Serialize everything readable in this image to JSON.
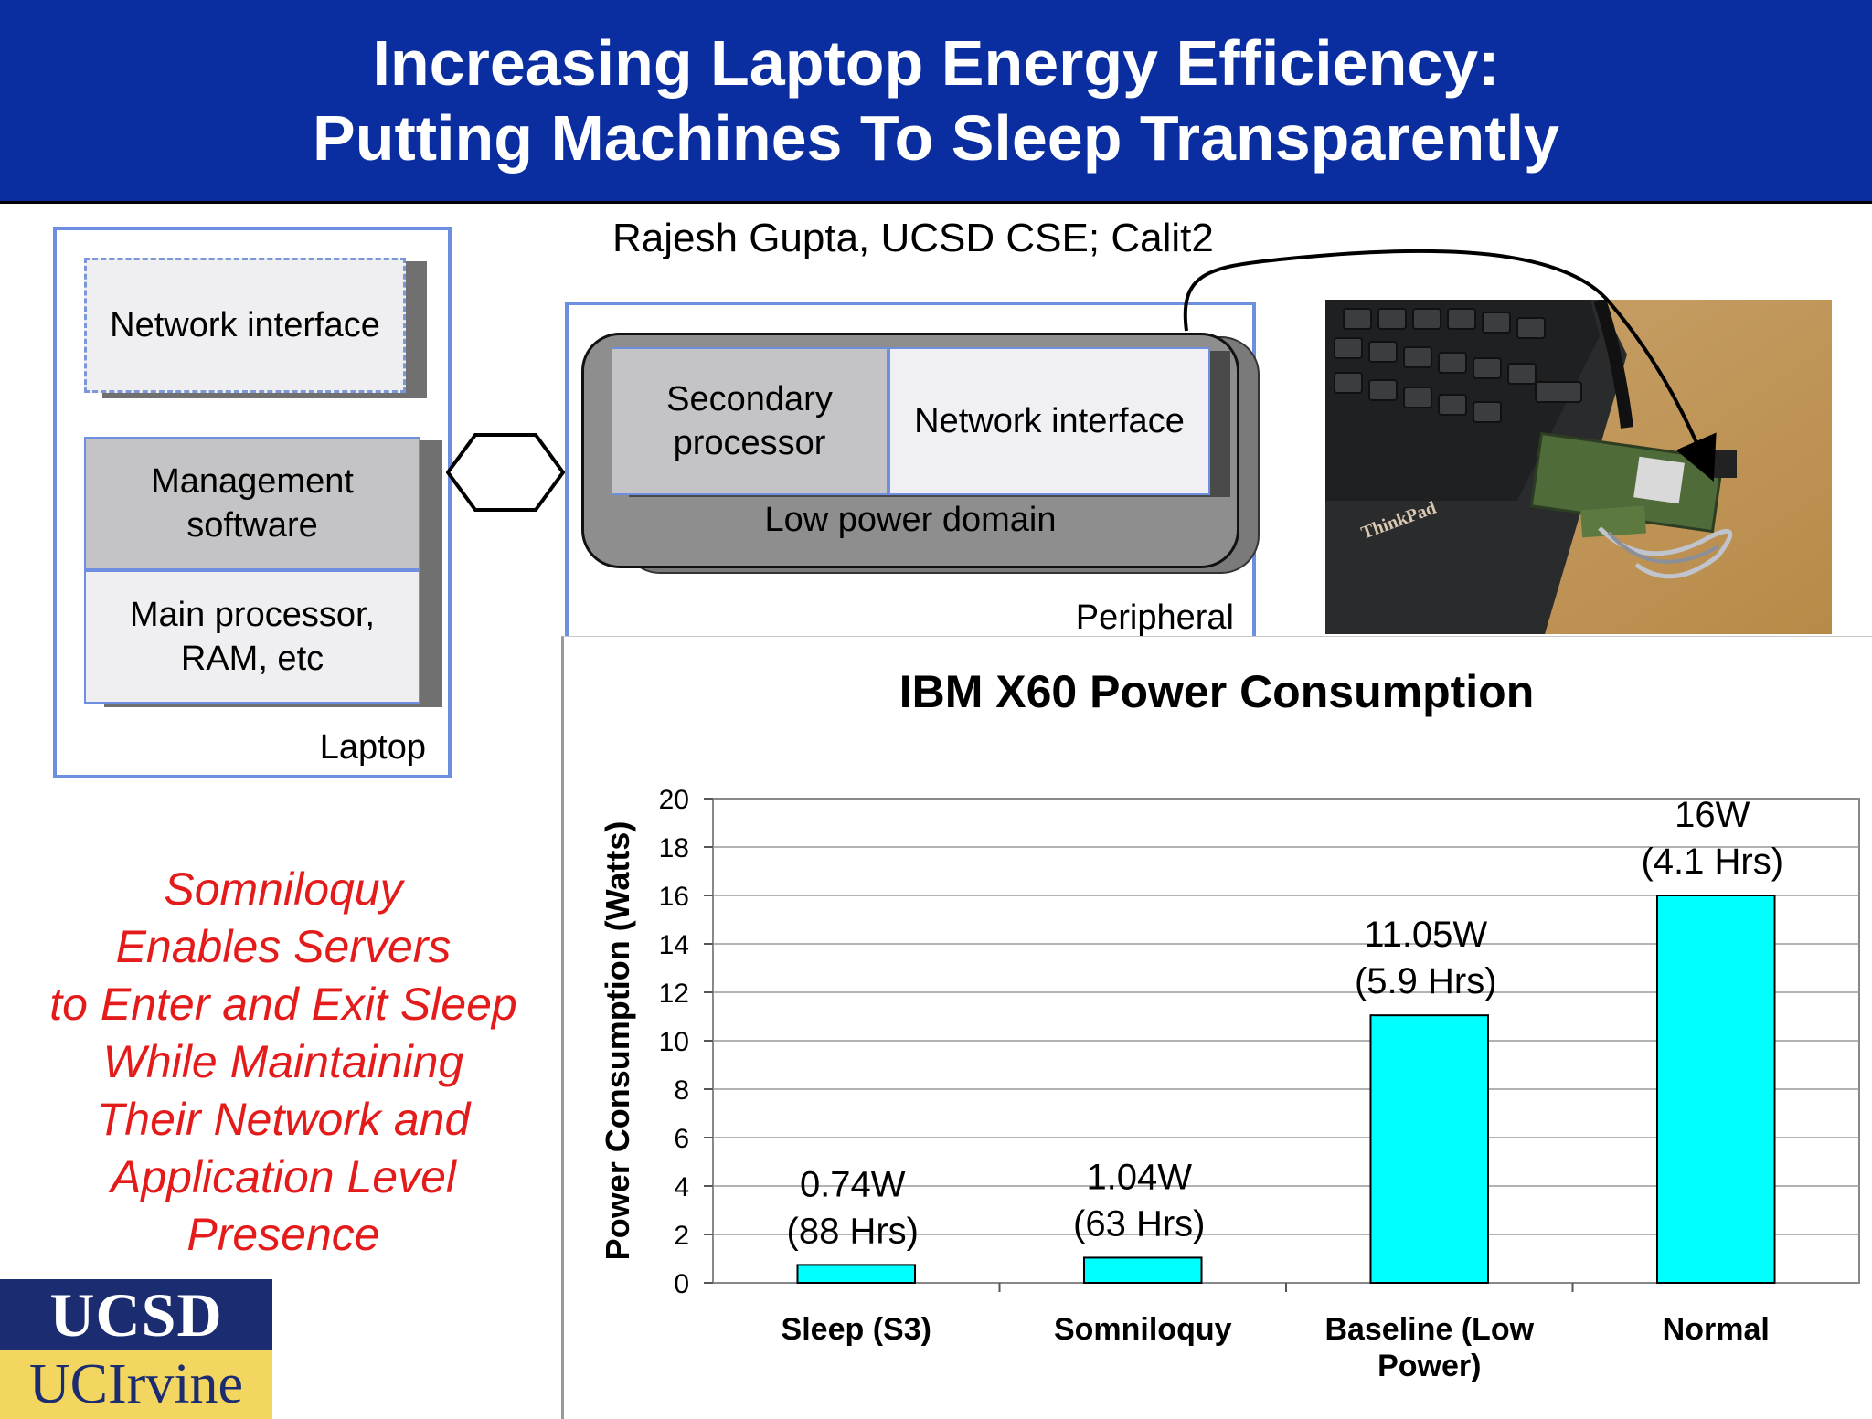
{
  "header": {
    "title_line1": "Increasing Laptop Energy Efficiency:",
    "title_line2": "Putting Machines To Sleep Transparently"
  },
  "author": "Rajesh Gupta, UCSD CSE; Calit2",
  "laptop": {
    "network_interface": "Network interface",
    "management_software": "Management software",
    "main_processor": "Main processor, RAM, etc",
    "label": "Laptop"
  },
  "peripheral": {
    "secondary_processor": "Secondary processor",
    "network_interface": "Network interface",
    "low_power_domain": "Low power domain",
    "label": "Peripheral"
  },
  "photo": {
    "brand_text": "ThinkPad"
  },
  "tagline": [
    "Somniloquy",
    "Enables Servers",
    "to Enter and Exit Sleep",
    "While Maintaining",
    "Their Network and",
    "Application Level",
    "Presence"
  ],
  "logo": {
    "top": "UCSD",
    "bottom": "UCIrvine"
  },
  "colors": {
    "header": "#0a2ea0",
    "tagline": "#e41b1b",
    "bar": "#00ffff",
    "box_border": "#6e8fe0"
  },
  "chart_data": {
    "type": "bar",
    "title": "IBM X60 Power Consumption",
    "ylabel": "Power Consumption (Watts)",
    "xlabel": "",
    "ylim": [
      0,
      20
    ],
    "yticks": [
      0,
      2,
      4,
      6,
      8,
      10,
      12,
      14,
      16,
      18,
      20
    ],
    "grid": true,
    "categories": [
      "Sleep (S3)",
      "Somniloquy",
      "Baseline (Low Power)",
      "Normal"
    ],
    "category_lines": [
      [
        "Sleep (S3)"
      ],
      [
        "Somniloquy"
      ],
      [
        "Baseline (Low",
        "Power)"
      ],
      [
        "Normal"
      ]
    ],
    "values": [
      0.74,
      1.04,
      11.05,
      16
    ],
    "data_labels": [
      [
        "0.74W",
        "(88 Hrs)"
      ],
      [
        "1.04W",
        "(63 Hrs)"
      ],
      [
        "11.05W",
        "(5.9 Hrs)"
      ],
      [
        "16W",
        "(4.1 Hrs)"
      ]
    ]
  }
}
